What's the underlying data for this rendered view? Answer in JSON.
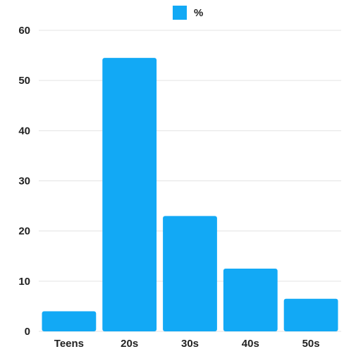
{
  "chart_data": {
    "type": "bar",
    "categories": [
      "Teens",
      "20s",
      "30s",
      "40s",
      "50s"
    ],
    "series": [
      {
        "name": "%",
        "values": [
          4,
          54.5,
          23,
          12.5,
          6.5
        ],
        "color": "#12a9f5"
      }
    ],
    "title": "",
    "xlabel": "",
    "ylabel": "",
    "ylim": [
      0,
      60
    ],
    "yticks": [
      0,
      10,
      20,
      30,
      40,
      50,
      60
    ],
    "grid": true,
    "legend_position": "top-center"
  }
}
